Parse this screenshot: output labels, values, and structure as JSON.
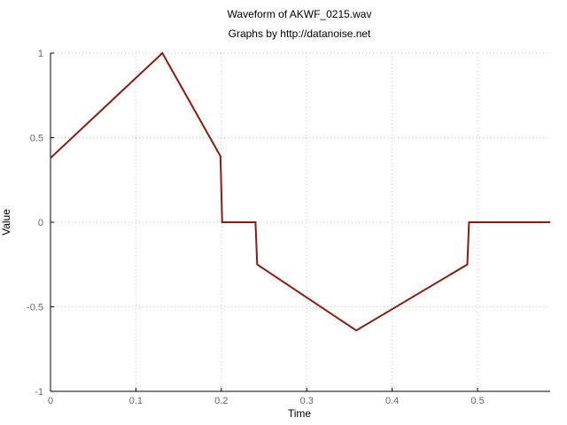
{
  "chart_data": {
    "type": "line",
    "title": "Waveform of AKWF_0215.wav",
    "subtitle": "Graphs by http://datanoise.net",
    "xlabel": "Time",
    "ylabel": "Value",
    "xlim": [
      0,
      0.585
    ],
    "ylim": [
      -1,
      1
    ],
    "xticks": [
      0,
      0.1,
      0.2,
      0.3,
      0.4,
      0.5
    ],
    "xtick_labels": [
      "0",
      "0.1",
      "0.2",
      "0.3",
      "0.4",
      "0.5"
    ],
    "yticks": [
      1,
      0.5,
      0,
      -0.5,
      -1
    ],
    "ytick_labels": [
      "1",
      "0.5",
      "0",
      "-0.5",
      "-1"
    ],
    "grid": true,
    "colors": {
      "line": "#8b1a10"
    },
    "series": [
      {
        "x": [
          0,
          0.131,
          0.199,
          0.201,
          0.24,
          0.242,
          0.358,
          0.488,
          0.49,
          0.585
        ],
        "y": [
          0.38,
          1.0,
          0.39,
          0.0,
          0.0,
          -0.25,
          -0.64,
          -0.25,
          0.0,
          0.0
        ]
      }
    ]
  }
}
